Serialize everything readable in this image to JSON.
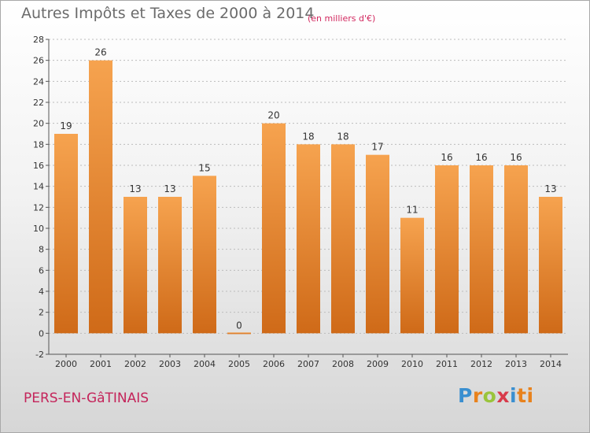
{
  "header": {
    "title": "Autres Impôts et Taxes de 2000 à 2014",
    "subtitle": "(en milliers d'€)"
  },
  "footer": {
    "commune": "PERS-EN-GâTINAIS",
    "logo": [
      "P",
      "r",
      "o",
      "x",
      "i",
      "ti"
    ]
  },
  "colors": {
    "bar_top": "#f6a34f",
    "bar_bottom": "#cf6a18",
    "grid": "#bcbcbc",
    "label": "#333333"
  },
  "chart_data": {
    "type": "bar",
    "title": "Autres Impôts et Taxes de 2000 à 2014",
    "subtitle": "(en milliers d'€)",
    "categories": [
      "2000",
      "2001",
      "2002",
      "2003",
      "2004",
      "2005",
      "2006",
      "2007",
      "2008",
      "2009",
      "2010",
      "2011",
      "2012",
      "2013",
      "2014"
    ],
    "values": [
      19,
      26,
      13,
      13,
      15,
      0,
      20,
      18,
      18,
      17,
      11,
      16,
      16,
      16,
      13
    ],
    "ylim": [
      -2,
      28
    ],
    "yticks": [
      -2,
      0,
      2,
      4,
      6,
      8,
      10,
      12,
      14,
      16,
      18,
      20,
      22,
      24,
      26,
      28
    ],
    "grid": true
  }
}
